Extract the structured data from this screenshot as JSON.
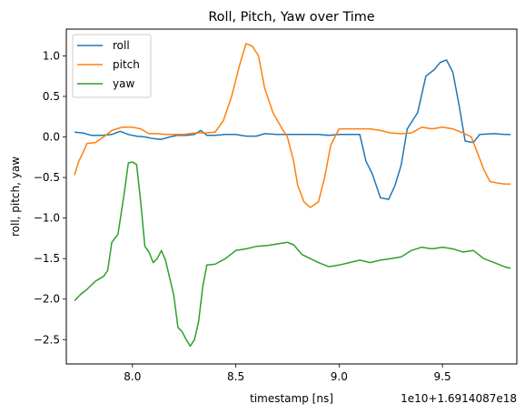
{
  "chart_data": {
    "type": "line",
    "title": "Roll, Pitch, Yaw over Time",
    "xlabel": "timestamp [ns]",
    "ylabel": "roll, pitch, yaw",
    "x_offset_label": "1e10+1.6914087e18",
    "xlim": [
      7.68,
      9.86
    ],
    "ylim": [
      -2.8,
      1.33
    ],
    "xticks": [
      8.0,
      8.5,
      9.0,
      9.5
    ],
    "xtick_labels": [
      "8.0",
      "8.5",
      "9.0",
      "9.5"
    ],
    "yticks": [
      1.0,
      0.5,
      0.0,
      -0.5,
      -1.0,
      -1.5,
      -2.0,
      -2.5
    ],
    "ytick_labels": [
      "1.0",
      "0.5",
      "0.0",
      "−0.5",
      "−1.0",
      "−1.5",
      "−2.0",
      "−2.5"
    ],
    "grid": false,
    "legend_position": "top-left",
    "series": [
      {
        "name": "roll",
        "color": "#1f77b4",
        "points": [
          [
            7.72,
            0.06
          ],
          [
            7.76,
            0.05
          ],
          [
            7.8,
            0.02
          ],
          [
            7.85,
            0.02
          ],
          [
            7.9,
            0.03
          ],
          [
            7.94,
            0.07
          ],
          [
            7.98,
            0.03
          ],
          [
            8.02,
            0.01
          ],
          [
            8.06,
            0.0
          ],
          [
            8.1,
            -0.02
          ],
          [
            8.14,
            -0.03
          ],
          [
            8.18,
            0.0
          ],
          [
            8.22,
            0.02
          ],
          [
            8.26,
            0.02
          ],
          [
            8.3,
            0.03
          ],
          [
            8.33,
            0.08
          ],
          [
            8.36,
            0.02
          ],
          [
            8.4,
            0.02
          ],
          [
            8.45,
            0.03
          ],
          [
            8.5,
            0.03
          ],
          [
            8.55,
            0.01
          ],
          [
            8.6,
            0.01
          ],
          [
            8.64,
            0.04
          ],
          [
            8.7,
            0.03
          ],
          [
            8.75,
            0.03
          ],
          [
            8.8,
            0.03
          ],
          [
            8.85,
            0.03
          ],
          [
            8.9,
            0.03
          ],
          [
            8.95,
            0.02
          ],
          [
            9.0,
            0.03
          ],
          [
            9.05,
            0.03
          ],
          [
            9.1,
            0.03
          ],
          [
            9.13,
            -0.3
          ],
          [
            9.16,
            -0.45
          ],
          [
            9.2,
            -0.75
          ],
          [
            9.24,
            -0.77
          ],
          [
            9.27,
            -0.6
          ],
          [
            9.3,
            -0.35
          ],
          [
            9.33,
            0.1
          ],
          [
            9.38,
            0.3
          ],
          [
            9.42,
            0.75
          ],
          [
            9.46,
            0.83
          ],
          [
            9.49,
            0.92
          ],
          [
            9.52,
            0.95
          ],
          [
            9.55,
            0.8
          ],
          [
            9.58,
            0.4
          ],
          [
            9.61,
            -0.05
          ],
          [
            9.65,
            -0.07
          ],
          [
            9.68,
            0.03
          ],
          [
            9.75,
            0.04
          ],
          [
            9.8,
            0.03
          ],
          [
            9.83,
            0.03
          ]
        ]
      },
      {
        "name": "pitch",
        "color": "#ff7f0e",
        "points": [
          [
            7.72,
            -0.47
          ],
          [
            7.74,
            -0.3
          ],
          [
            7.76,
            -0.2
          ],
          [
            7.78,
            -0.08
          ],
          [
            7.82,
            -0.07
          ],
          [
            7.86,
            0.0
          ],
          [
            7.9,
            0.08
          ],
          [
            7.95,
            0.12
          ],
          [
            8.0,
            0.12
          ],
          [
            8.04,
            0.1
          ],
          [
            8.08,
            0.04
          ],
          [
            8.12,
            0.04
          ],
          [
            8.16,
            0.03
          ],
          [
            8.2,
            0.03
          ],
          [
            8.25,
            0.03
          ],
          [
            8.3,
            0.05
          ],
          [
            8.35,
            0.05
          ],
          [
            8.4,
            0.06
          ],
          [
            8.44,
            0.2
          ],
          [
            8.48,
            0.5
          ],
          [
            8.52,
            0.9
          ],
          [
            8.55,
            1.15
          ],
          [
            8.58,
            1.12
          ],
          [
            8.61,
            1.0
          ],
          [
            8.64,
            0.6
          ],
          [
            8.68,
            0.3
          ],
          [
            8.72,
            0.12
          ],
          [
            8.75,
            0.0
          ],
          [
            8.78,
            -0.3
          ],
          [
            8.8,
            -0.6
          ],
          [
            8.83,
            -0.8
          ],
          [
            8.86,
            -0.87
          ],
          [
            8.9,
            -0.8
          ],
          [
            8.93,
            -0.5
          ],
          [
            8.96,
            -0.1
          ],
          [
            9.0,
            0.1
          ],
          [
            9.05,
            0.1
          ],
          [
            9.1,
            0.1
          ],
          [
            9.15,
            0.1
          ],
          [
            9.2,
            0.08
          ],
          [
            9.25,
            0.05
          ],
          [
            9.3,
            0.04
          ],
          [
            9.35,
            0.05
          ],
          [
            9.4,
            0.12
          ],
          [
            9.45,
            0.1
          ],
          [
            9.5,
            0.12
          ],
          [
            9.55,
            0.1
          ],
          [
            9.6,
            0.05
          ],
          [
            9.64,
            0.0
          ],
          [
            9.67,
            -0.2
          ],
          [
            9.7,
            -0.4
          ],
          [
            9.73,
            -0.55
          ],
          [
            9.77,
            -0.57
          ],
          [
            9.8,
            -0.58
          ],
          [
            9.83,
            -0.58
          ]
        ]
      },
      {
        "name": "yaw",
        "color": "#2ca02c",
        "points": [
          [
            7.72,
            -2.02
          ],
          [
            7.75,
            -1.94
          ],
          [
            7.78,
            -1.88
          ],
          [
            7.82,
            -1.78
          ],
          [
            7.86,
            -1.72
          ],
          [
            7.88,
            -1.65
          ],
          [
            7.9,
            -1.3
          ],
          [
            7.93,
            -1.2
          ],
          [
            7.96,
            -0.7
          ],
          [
            7.98,
            -0.32
          ],
          [
            8.0,
            -0.31
          ],
          [
            8.02,
            -0.34
          ],
          [
            8.04,
            -0.8
          ],
          [
            8.06,
            -1.35
          ],
          [
            8.08,
            -1.42
          ],
          [
            8.1,
            -1.55
          ],
          [
            8.12,
            -1.5
          ],
          [
            8.14,
            -1.4
          ],
          [
            8.16,
            -1.52
          ],
          [
            8.2,
            -1.95
          ],
          [
            8.22,
            -2.35
          ],
          [
            8.24,
            -2.4
          ],
          [
            8.26,
            -2.5
          ],
          [
            8.28,
            -2.58
          ],
          [
            8.3,
            -2.5
          ],
          [
            8.32,
            -2.28
          ],
          [
            8.34,
            -1.85
          ],
          [
            8.36,
            -1.58
          ],
          [
            8.4,
            -1.57
          ],
          [
            8.45,
            -1.5
          ],
          [
            8.5,
            -1.4
          ],
          [
            8.55,
            -1.38
          ],
          [
            8.6,
            -1.35
          ],
          [
            8.65,
            -1.34
          ],
          [
            8.7,
            -1.32
          ],
          [
            8.75,
            -1.3
          ],
          [
            8.78,
            -1.33
          ],
          [
            8.82,
            -1.45
          ],
          [
            8.86,
            -1.5
          ],
          [
            8.9,
            -1.55
          ],
          [
            8.95,
            -1.6
          ],
          [
            9.0,
            -1.58
          ],
          [
            9.05,
            -1.55
          ],
          [
            9.1,
            -1.52
          ],
          [
            9.15,
            -1.55
          ],
          [
            9.2,
            -1.52
          ],
          [
            9.25,
            -1.5
          ],
          [
            9.3,
            -1.48
          ],
          [
            9.35,
            -1.4
          ],
          [
            9.4,
            -1.36
          ],
          [
            9.45,
            -1.38
          ],
          [
            9.5,
            -1.36
          ],
          [
            9.55,
            -1.38
          ],
          [
            9.6,
            -1.42
          ],
          [
            9.65,
            -1.4
          ],
          [
            9.7,
            -1.5
          ],
          [
            9.75,
            -1.55
          ],
          [
            9.8,
            -1.6
          ],
          [
            9.83,
            -1.62
          ]
        ]
      }
    ]
  }
}
